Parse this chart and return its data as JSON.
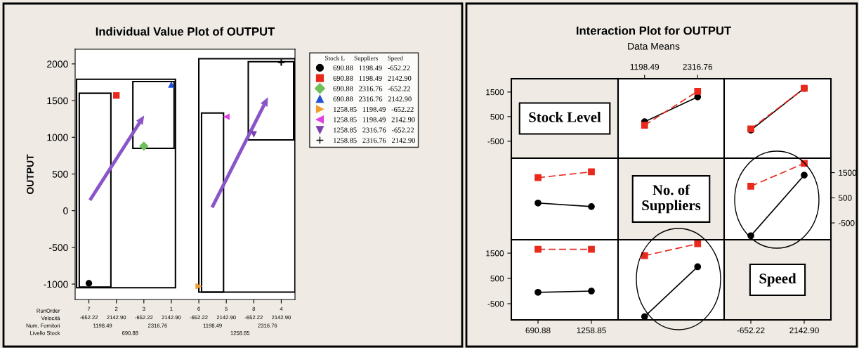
{
  "chart_data": [
    {
      "type": "scatter",
      "title": "Individual Value Plot of OUTPUT",
      "ylabel": "OUTPUT",
      "categories": [
        "7\n-652.22",
        "2\n2142.90",
        "3\n-652.22",
        "1\n2142.90",
        "6\n-652.22",
        "5\n2142.90",
        "8\n-652.22",
        "4\n2142.90"
      ],
      "ylim": [
        -1210,
        2200
      ],
      "yticks": [
        -1000,
        -500,
        0,
        500,
        1000,
        1500,
        2000
      ],
      "grid": false,
      "legend": "right",
      "legend_title": "Stock L      Suppliers      Speed",
      "annotations": [
        "RunOrder",
        "Velocità",
        "Num. Fornitori",
        "Livello Stock",
        "1198.49",
        "2316.76",
        "1198.49",
        "2316.76",
        "690.88",
        "1258.85"
      ],
      "series": [
        {
          "name": "690.88   1198.49   -652.22",
          "color": "#000000",
          "marker": "circle",
          "values": [
            -990,
            null,
            null,
            null,
            null,
            null,
            null,
            null
          ]
        },
        {
          "name": "690.88   1198.49   2142.90",
          "color": "#e8291c",
          "marker": "square",
          "values": [
            null,
            1570,
            null,
            null,
            null,
            null,
            null,
            null
          ]
        },
        {
          "name": "690.88   2316.76   -652.22",
          "color": "#6fbf5a",
          "marker": "diamond",
          "values": [
            null,
            null,
            880,
            null,
            null,
            null,
            null,
            null
          ]
        },
        {
          "name": "690.88   2316.76   2142.90",
          "color": "#1f4fd8",
          "marker": "triangle",
          "values": [
            null,
            null,
            null,
            1720,
            null,
            null,
            null,
            null
          ]
        },
        {
          "name": "1258.85   1198.49   -652.22",
          "color": "#f0a030",
          "marker": "triangle-right",
          "values": [
            null,
            null,
            null,
            null,
            -1030,
            null,
            null,
            null
          ]
        },
        {
          "name": "1258.85   1198.49   2142.90",
          "color": "#e040e0",
          "marker": "triangle-left",
          "values": [
            null,
            null,
            null,
            null,
            null,
            1280,
            null,
            null
          ]
        },
        {
          "name": "1258.85   2316.76   -652.22",
          "color": "#7a3fb0",
          "marker": "triangle-down",
          "values": [
            null,
            null,
            null,
            null,
            null,
            null,
            1040,
            null
          ]
        },
        {
          "name": "1258.85   2316.76   2142.90",
          "color": "#000000",
          "marker": "cross",
          "values": [
            null,
            null,
            null,
            null,
            null,
            null,
            null,
            2020
          ]
        }
      ]
    },
    {
      "type": "line",
      "annotations": [
        "Stock Level"
      ],
      "categories": [
        "690.88",
        "1258.85"
      ],
      "ylim": [
        -1190,
        2040
      ],
      "yticks": [
        -500,
        500,
        1500
      ],
      "tick_labels": "y"
    },
    {
      "type": "line",
      "title": "Interaction Plot for OUTPUT",
      "subtitle": "Data Means",
      "categories": [
        "1198.49",
        "2316.76"
      ],
      "ylim": [
        -1190,
        2040
      ],
      "tick_labels": "x",
      "series": [
        {
          "color": "#000000",
          "marker": "circle",
          "line_style": "solid",
          "values": [
            290,
            1300
          ]
        },
        {
          "color": "#e8291c",
          "marker": "square",
          "line_style": "dashed",
          "values": [
            150,
            1530
          ]
        }
      ]
    },
    {
      "type": "line",
      "categories": [
        "-652.22",
        "2142.90"
      ],
      "ylim": [
        -1190,
        2040
      ],
      "tick_labels": false,
      "series": [
        {
          "color": "#000000",
          "marker": "circle",
          "line_style": "solid",
          "values": [
            -50,
            1650
          ]
        },
        {
          "color": "#e8291c",
          "marker": "square",
          "line_style": "dashed",
          "values": [
            0,
            1650
          ]
        }
      ]
    },
    {
      "type": "line",
      "categories": [
        "690.88",
        "1258.85"
      ],
      "ylim": [
        -1170,
        2075
      ],
      "tick_labels": false,
      "series": [
        {
          "color": "#000000",
          "marker": "circle",
          "line_style": "solid",
          "values": [
            290,
            150
          ]
        },
        {
          "color": "#e8291c",
          "marker": "square",
          "line_style": "dashed",
          "values": [
            1300,
            1530
          ]
        }
      ]
    },
    {
      "type": "line",
      "annotations": [
        "No. of\nSuppliers"
      ],
      "categories": [
        "1198.49",
        "2316.76"
      ],
      "ylim": [
        -1170,
        2075
      ],
      "tick_labels": false
    },
    {
      "type": "line",
      "categories": [
        "-652.22",
        "2142.90"
      ],
      "ylim": [
        -1170,
        2075
      ],
      "yticks": [
        -500,
        500,
        1500
      ],
      "tick_labels": "y",
      "series": [
        {
          "color": "#000000",
          "marker": "circle",
          "line_style": "solid",
          "values": [
            -1010,
            1400
          ]
        },
        {
          "color": "#e8291c",
          "marker": "square",
          "line_style": "dashed",
          "values": [
            960,
            1870
          ]
        }
      ]
    },
    {
      "type": "line",
      "categories": [
        "690.88",
        "1258.85"
      ],
      "ylim": [
        -1140,
        2030
      ],
      "yticks": [
        -500,
        500,
        1500
      ],
      "series": [
        {
          "color": "#000000",
          "marker": "circle",
          "line_style": "solid",
          "values": [
            -50,
            0
          ]
        },
        {
          "color": "#e8291c",
          "marker": "square",
          "line_style": "dashed",
          "values": [
            1650,
            1650
          ]
        }
      ]
    },
    {
      "type": "line",
      "categories": [
        "1198.49",
        "2316.76"
      ],
      "ylim": [
        -1140,
        2030
      ],
      "tick_labels": false,
      "series": [
        {
          "color": "#000000",
          "marker": "circle",
          "line_style": "solid",
          "values": [
            -1010,
            960
          ]
        },
        {
          "color": "#e8291c",
          "marker": "square",
          "line_style": "dashed",
          "values": [
            1400,
            1870
          ]
        }
      ]
    },
    {
      "type": "line",
      "annotations": [
        "Speed"
      ],
      "categories": [
        "-652.22",
        "2142.90"
      ],
      "ylim": [
        -1140,
        2030
      ],
      "tick_labels": "x"
    }
  ]
}
